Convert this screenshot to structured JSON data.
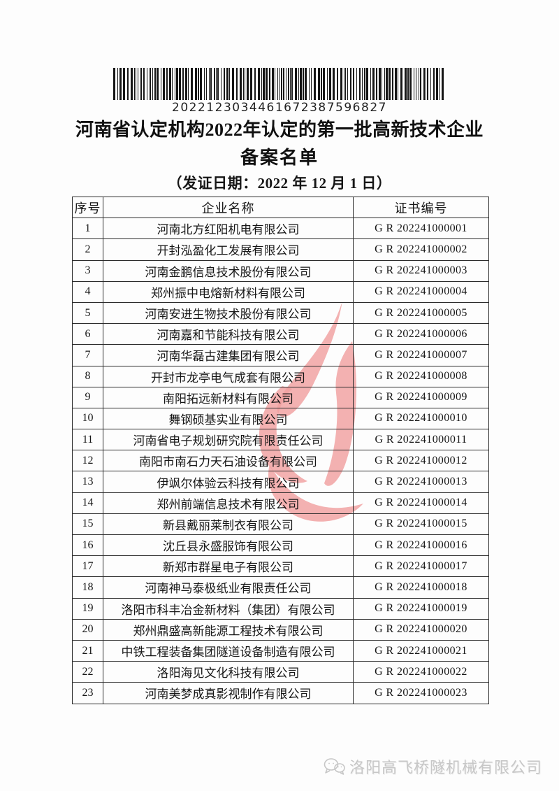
{
  "barcode": {
    "value": "2022123034461672387596827"
  },
  "title": {
    "line1": "河南省认定机构2022年认定的第一批高新技术企业",
    "line2": "备案名单",
    "subtitle": "（发证日期：2022 年 12 月 1 日）"
  },
  "table": {
    "headers": [
      "序号",
      "企业名称",
      "证书编号"
    ],
    "rows": [
      {
        "no": "1",
        "company": "河南北方红阳机电有限公司",
        "cert": "G R 202241000001"
      },
      {
        "no": "2",
        "company": "开封泓盈化工发展有限公司",
        "cert": "G R 202241000002"
      },
      {
        "no": "3",
        "company": "河南金鹏信息技术股份有限公司",
        "cert": "G R 202241000003"
      },
      {
        "no": "4",
        "company": "郑州振中电熔新材料有限公司",
        "cert": "G R 202241000004"
      },
      {
        "no": "5",
        "company": "河南安进生物技术股份有限公司",
        "cert": "G R 202241000005"
      },
      {
        "no": "6",
        "company": "河南嘉和节能科技有限公司",
        "cert": "G R 202241000006"
      },
      {
        "no": "7",
        "company": "河南华磊古建集团有限公司",
        "cert": "G R 202241000007"
      },
      {
        "no": "8",
        "company": "开封市龙亭电气成套有限公司",
        "cert": "G R 202241000008"
      },
      {
        "no": "9",
        "company": "南阳拓远新材料有限公司",
        "cert": "G R 202241000009"
      },
      {
        "no": "10",
        "company": "舞钢硕基实业有限公司",
        "cert": "G R 202241000010"
      },
      {
        "no": "11",
        "company": "河南省电子规划研究院有限责任公司",
        "cert": "G R 202241000011"
      },
      {
        "no": "12",
        "company": "南阳市南石力天石油设备有限公司",
        "cert": "G R 202241000012"
      },
      {
        "no": "13",
        "company": "伊飒尔体验云科技有限公司",
        "cert": "G R 202241000013"
      },
      {
        "no": "14",
        "company": "郑州前端信息技术有限公司",
        "cert": "G R 202241000014"
      },
      {
        "no": "15",
        "company": "新县戴丽莱制衣有限公司",
        "cert": "G R 202241000015"
      },
      {
        "no": "16",
        "company": "沈丘县永盛服饰有限公司",
        "cert": "G R 202241000016"
      },
      {
        "no": "17",
        "company": "新郑市群星电子有限公司",
        "cert": "G R 202241000017"
      },
      {
        "no": "18",
        "company": "河南神马泰极纸业有限责任公司",
        "cert": "G R 202241000018"
      },
      {
        "no": "19",
        "company": "洛阳市科丰冶金新材料（集团）有限公司",
        "cert": "G R 202241000019"
      },
      {
        "no": "20",
        "company": "郑州鼎盛高新能源工程技术有限公司",
        "cert": "G R 202241000020"
      },
      {
        "no": "21",
        "company": "中铁工程装备集团隧道设备制造有限公司",
        "cert": "G R 202241000021"
      },
      {
        "no": "22",
        "company": "洛阳海见文化科技有限公司",
        "cert": "G R 202241000022"
      },
      {
        "no": "23",
        "company": "河南美梦成真影视制作有限公司",
        "cert": "G R 202241000023"
      }
    ]
  },
  "watermark": {
    "icon": "red-flame-watermark",
    "color": "#f0a0a0"
  },
  "footer": {
    "icon": "wechat-icon",
    "company": "洛阳高飞桥隧机械有限公司",
    "color": "#c7c7c7"
  }
}
